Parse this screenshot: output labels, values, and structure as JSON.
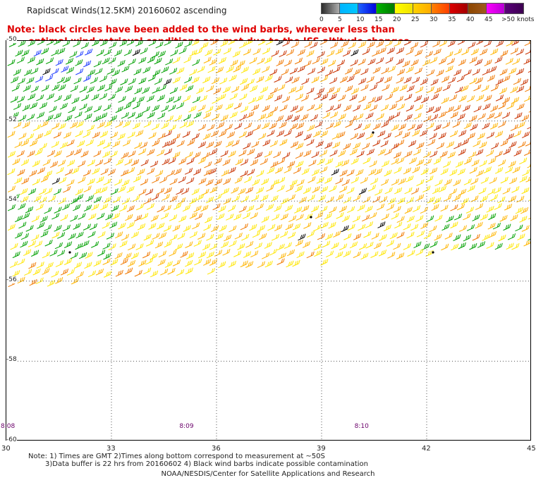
{
  "title": "Rapidscat Winds(12.5KM) 20160602 ascending",
  "note": {
    "line1": "Note: black circles have been added to the wind barbs, wherever less than",
    "line2": "optimal wind retrieval conditions are met due to the ISS altitude changes."
  },
  "legend": {
    "unit_label": ">50 knots",
    "bins": [
      {
        "label": "0",
        "colors": [
          "#2b2b2b",
          "#6e6e6e",
          "#b4b4b4"
        ]
      },
      {
        "label": "5",
        "colors": [
          "#00b4ff",
          "#00c8ff"
        ]
      },
      {
        "label": "10",
        "colors": [
          "#1e64ff",
          "#0000dc"
        ]
      },
      {
        "label": "15",
        "colors": [
          "#00b400",
          "#007800"
        ]
      },
      {
        "label": "20",
        "colors": [
          "#ffff00",
          "#f0e000"
        ]
      },
      {
        "label": "25",
        "colors": [
          "#ffd200",
          "#ffaa00"
        ]
      },
      {
        "label": "30",
        "colors": [
          "#ff8200",
          "#ff3c00"
        ]
      },
      {
        "label": "35",
        "colors": [
          "#dc0000",
          "#a00000"
        ]
      },
      {
        "label": "40",
        "colors": [
          "#8c4600",
          "#a05a1e"
        ]
      },
      {
        "label": "45",
        "colors": [
          "#ff00ff",
          "#b400d2"
        ]
      },
      {
        "label": "",
        "colors": [
          "#5a007a",
          "#3c0050"
        ]
      }
    ]
  },
  "map": {
    "lon_range": [
      30,
      45
    ],
    "lat_range": [
      -50,
      -60
    ],
    "lon_ticks": [
      "30",
      "33",
      "36",
      "39",
      "42",
      "45"
    ],
    "lat_ticks": [
      "-50",
      "-52",
      "-54",
      "-56",
      "-58",
      "-60"
    ],
    "time_labels": [
      "8:08",
      "8:09",
      "8:10"
    ],
    "swath_south_edge_lat": -56.2,
    "barb_color_key": {
      "blue": "#1e3cff",
      "green": "#00a000",
      "yellow": "#ffe600",
      "gold": "#ffb400",
      "orange": "#f07800",
      "red": "#c83200",
      "black": "#000000"
    }
  },
  "footnote1": "Note: 1) Times are GMT 2)Times along bottom correspond to measurement at ~50S",
  "footnote2": "3)Data buffer is 22 hrs from 20160602 4) Black wind barbs indicate possible contamination",
  "credit": "NOAA/NESDIS/Center for Satellite Applications and Research"
}
